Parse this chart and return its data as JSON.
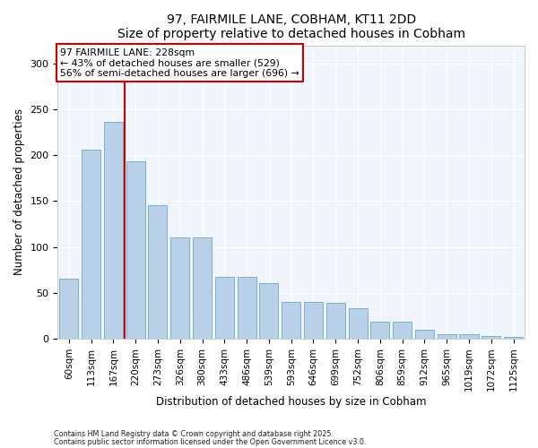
{
  "title": "97, FAIRMILE LANE, COBHAM, KT11 2DD",
  "subtitle": "Size of property relative to detached houses in Cobham",
  "xlabel": "Distribution of detached houses by size in Cobham",
  "ylabel": "Number of detached properties",
  "categories": [
    "60sqm",
    "113sqm",
    "167sqm",
    "220sqm",
    "273sqm",
    "326sqm",
    "380sqm",
    "433sqm",
    "486sqm",
    "539sqm",
    "593sqm",
    "646sqm",
    "699sqm",
    "752sqm",
    "806sqm",
    "859sqm",
    "912sqm",
    "965sqm",
    "1019sqm",
    "1072sqm",
    "1125sqm"
  ],
  "values": [
    65,
    206,
    236,
    193,
    146,
    110,
    110,
    67,
    67,
    61,
    40,
    40,
    39,
    33,
    19,
    19,
    10,
    5,
    5,
    3,
    2
  ],
  "bar_color": "#b8d0e8",
  "bar_edge_color": "#7bafd4",
  "ref_line_index": 3,
  "ref_line_label": "97 FAIRMILE LANE: 228sqm",
  "annotation_line1": "← 43% of detached houses are smaller (529)",
  "annotation_line2": "56% of semi-detached houses are larger (696) →",
  "box_color": "#cc0000",
  "ylim": [
    0,
    320
  ],
  "yticks": [
    0,
    50,
    100,
    150,
    200,
    250,
    300
  ],
  "footer_line1": "Contains HM Land Registry data © Crown copyright and database right 2025.",
  "footer_line2": "Contains public sector information licensed under the Open Government Licence v3.0.",
  "background_color": "#ffffff",
  "plot_bg_color": "#f0f4fb",
  "grid_color": "#ffffff",
  "title_fontsize": 10,
  "subtitle_fontsize": 9
}
